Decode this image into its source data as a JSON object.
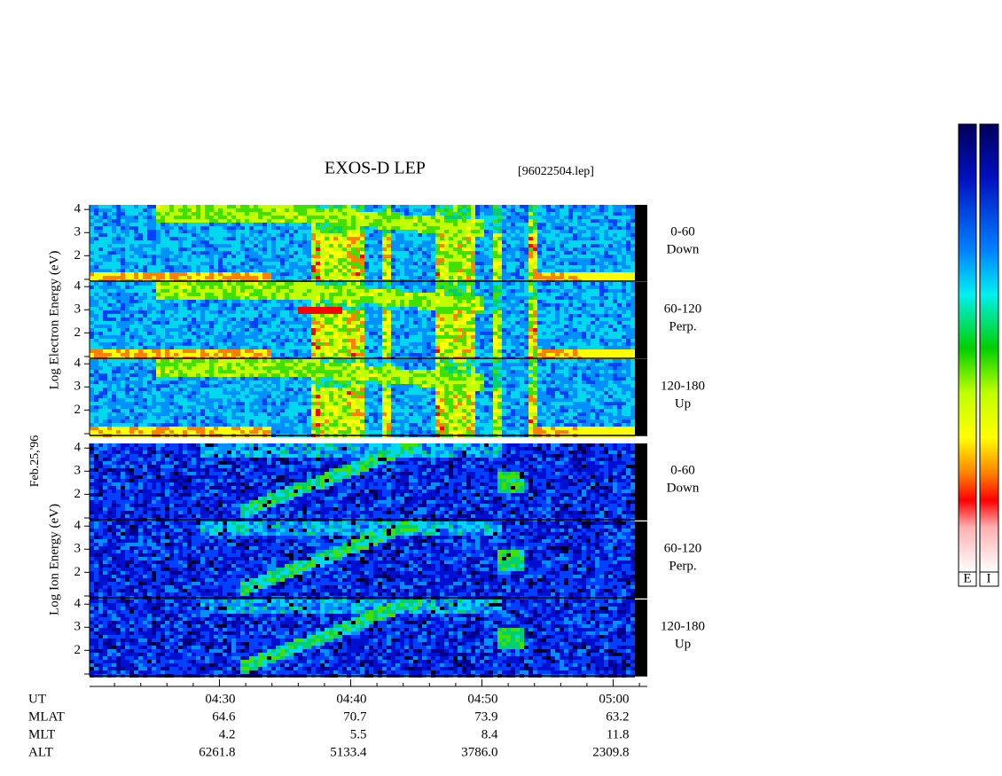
{
  "title": "EXOS-D LEP",
  "file": "[96022504.lep]",
  "date": "Feb.25,'96",
  "species": [
    {
      "label": "Log Electron Energy (eV)",
      "panels": [
        {
          "pitch": "0-60",
          "dir": "Down"
        },
        {
          "pitch": "60-120",
          "dir": "Perp."
        },
        {
          "pitch": "120-180",
          "dir": "Up"
        }
      ]
    },
    {
      "label": "Log Ion Energy (eV)",
      "panels": [
        {
          "pitch": "0-60",
          "dir": "Down"
        },
        {
          "pitch": "60-120",
          "dir": "Perp."
        },
        {
          "pitch": "120-180",
          "dir": "Up"
        }
      ]
    }
  ],
  "ylim": [
    0.9,
    4.2
  ],
  "yticks": [
    2,
    3,
    4
  ],
  "xlim": [
    260.1,
    302.6
  ],
  "xticks": [
    {
      "value": 270,
      "label": "04:30"
    },
    {
      "value": 280,
      "label": "04:40"
    },
    {
      "value": 290,
      "label": "04:50"
    },
    {
      "value": 300,
      "label": "05:00"
    }
  ],
  "xminorticks": [
    262,
    264,
    266,
    268,
    272,
    274,
    276,
    278,
    282,
    284,
    286,
    288,
    292,
    294,
    296,
    298,
    302
  ],
  "ut_label": "UT",
  "ephemeris": [
    {
      "name": "MLAT",
      "values": [
        "64.6",
        "70.7",
        "73.9",
        "63.2"
      ]
    },
    {
      "name": "MLT",
      "values": [
        "4.2",
        "5.5",
        "8.4",
        "11.8"
      ]
    },
    {
      "name": "ALT",
      "values": [
        "6261.8",
        "5133.4",
        "3786.0",
        "2309.8"
      ]
    }
  ],
  "colorbar": [
    "E",
    "I"
  ]
}
